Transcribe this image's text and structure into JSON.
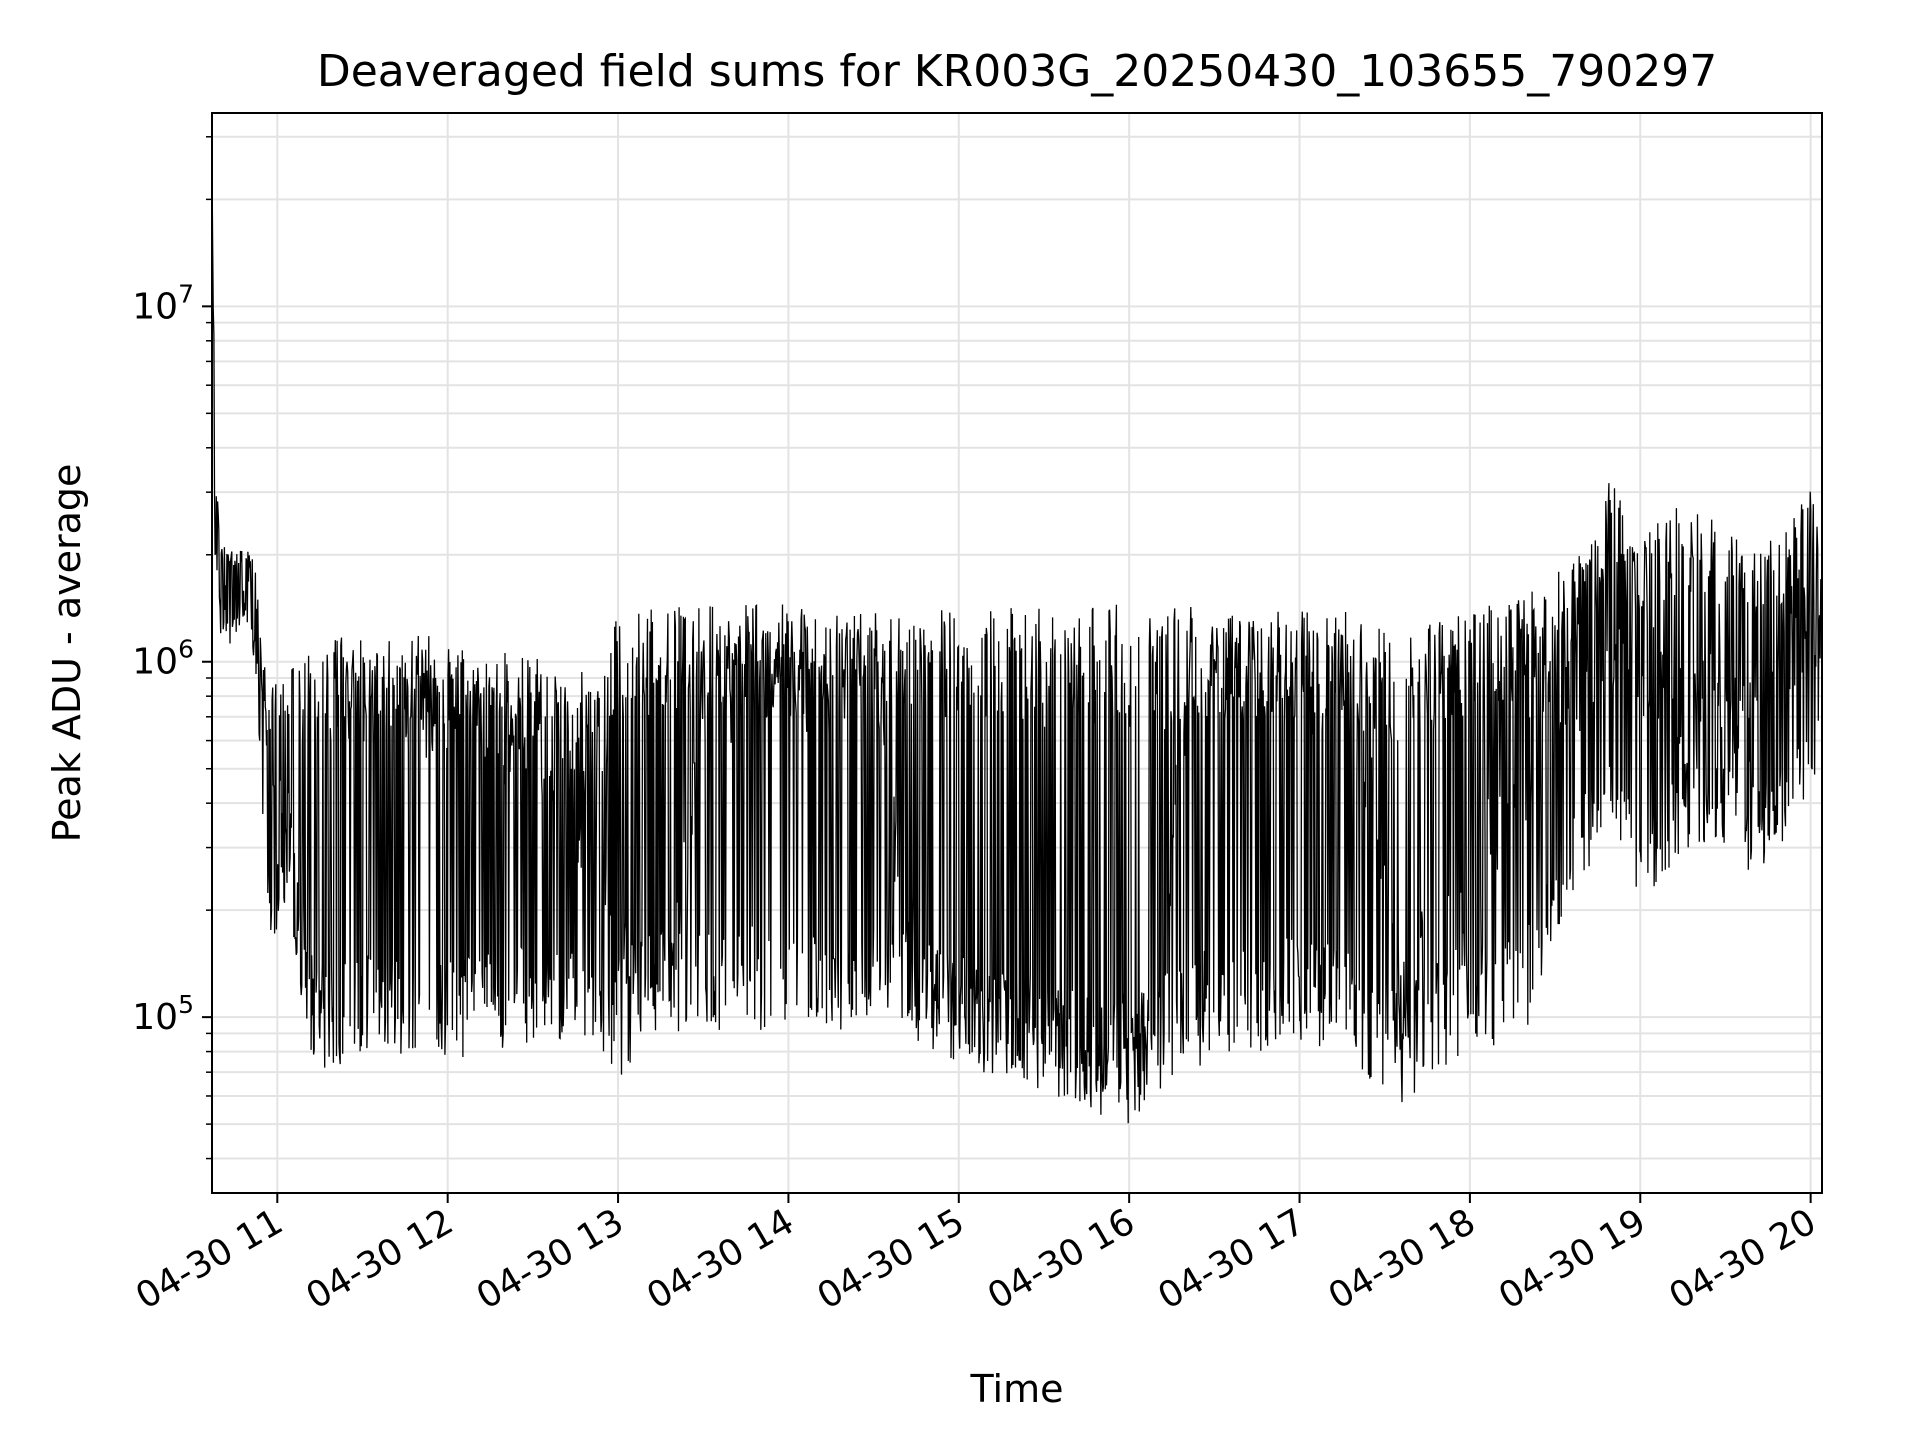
{
  "chart_data": {
    "type": "line",
    "title": "Deaveraged field sums for KR003G_20250430_103655_790297",
    "xlabel": "Time",
    "ylabel": "Peak ADU - average",
    "yscale": "log",
    "xlim": [
      "2025-04-30 10:37",
      "2025-04-30 20:04"
    ],
    "ylim": [
      32000,
      35000000
    ],
    "grid": true,
    "line_color": "#000000",
    "x_ticks": [
      "04-30 11",
      "04-30 12",
      "04-30 13",
      "04-30 14",
      "04-30 15",
      "04-30 16",
      "04-30 17",
      "04-30 18",
      "04-30 19",
      "04-30 20"
    ],
    "y_ticks": [
      {
        "value": 100000,
        "base": "10",
        "exp": "5"
      },
      {
        "value": 1000000,
        "base": "10",
        "exp": "6"
      },
      {
        "value": 10000000,
        "base": "10",
        "exp": "7"
      }
    ],
    "series": [
      {
        "x": [
          "10:37",
          "10:38",
          "10:40",
          "10:43",
          "10:46",
          "10:49",
          "10:52",
          "10:55",
          "10:58",
          "11:01",
          "11:04",
          "11:07",
          "11:10",
          "11:13",
          "11:16",
          "11:20",
          "11:25",
          "11:30",
          "11:40",
          "11:50",
          "12:00",
          "12:15",
          "12:30",
          "12:45",
          "12:55",
          "13:00",
          "13:10",
          "13:20",
          "13:30",
          "13:45",
          "14:00",
          "14:15",
          "14:30",
          "14:40",
          "14:50",
          "15:00",
          "15:15",
          "15:30",
          "15:45",
          "16:00",
          "16:10",
          "16:20",
          "16:30",
          "16:45",
          "17:00",
          "17:15",
          "17:25",
          "17:35",
          "17:50",
          "18:05",
          "18:20",
          "18:35",
          "18:45",
          "18:50",
          "19:00",
          "19:15",
          "19:30",
          "19:40",
          "19:50",
          "20:00",
          "20:04"
        ],
        "values": [
          25000000,
          3000000,
          1700000,
          1500000,
          1600000,
          1800000,
          1400000,
          800000,
          650000,
          400000,
          300000,
          200000,
          140000,
          100000,
          90000,
          800000,
          900000,
          850000,
          800000,
          750000,
          700000,
          650000,
          600000,
          400000,
          250000,
          140000,
          130000,
          130000,
          700000,
          900000,
          900000,
          850000,
          900000,
          200000,
          130000,
          110000,
          95000,
          80000,
          75000,
          70000,
          90000,
          800000,
          1000000,
          900000,
          850000,
          900000,
          450000,
          110000,
          180000,
          300000,
          500000,
          750000,
          1100000,
          1200000,
          1000000,
          700000,
          800000,
          600000,
          1000000,
          1300000,
          1400000
        ],
        "lows": [
          25000000,
          2000000,
          1200000,
          1100000,
          1200000,
          1300000,
          1000000,
          300000,
          150000,
          200000,
          180000,
          120000,
          90000,
          75000,
          70000,
          70000,
          75000,
          80000,
          75000,
          80000,
          75000,
          80000,
          85000,
          80000,
          70000,
          65000,
          85000,
          90000,
          90000,
          90000,
          95000,
          90000,
          90000,
          95000,
          75000,
          70000,
          65000,
          60000,
          60000,
          55000,
          60000,
          65000,
          80000,
          80000,
          85000,
          80000,
          65000,
          55000,
          70000,
          80000,
          90000,
          200000,
          300000,
          300000,
          200000,
          300000,
          300000,
          250000,
          300000,
          400000,
          500000
        ],
        "highs": [
          25000000,
          3200000,
          2300000,
          2100000,
          2000000,
          2200000,
          2000000,
          1000000,
          900000,
          850000,
          950000,
          1000000,
          1050000,
          1100000,
          1150000,
          1200000,
          1200000,
          1150000,
          1150000,
          1200000,
          1150000,
          1100000,
          1050000,
          1000000,
          900000,
          1400000,
          1400000,
          1450000,
          1450000,
          1450000,
          1450000,
          1450000,
          1400000,
          1450000,
          1450000,
          1400000,
          1450000,
          1450000,
          1450000,
          1450000,
          1400000,
          1450000,
          1450000,
          1400000,
          1400000,
          1400000,
          1300000,
          1250000,
          1300000,
          1450000,
          1550000,
          1900000,
          2300000,
          3600000,
          2300000,
          2800000,
          2400000,
          2100000,
          2400000,
          3100000,
          2700000
        ]
      }
    ]
  }
}
